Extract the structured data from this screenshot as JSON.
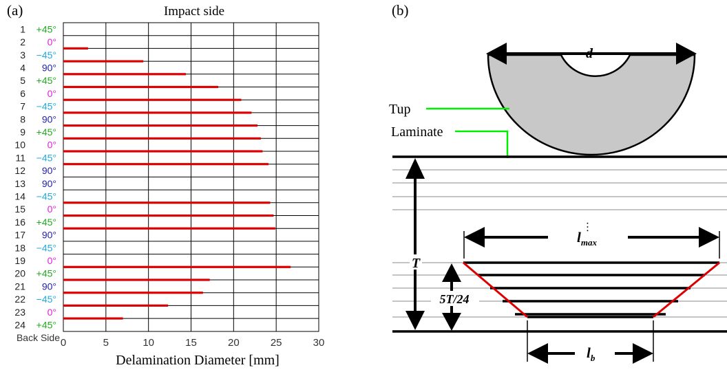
{
  "panel_a": {
    "label": "(a)",
    "chart_data": {
      "type": "bar",
      "orientation": "horizontal",
      "title": "Impact side",
      "xlabel": "Delamination Diameter [mm]",
      "ylabel": "",
      "bottom_label": "Back Side",
      "xlim": [
        0,
        30
      ],
      "xticks": [
        "0",
        "5",
        "10",
        "15",
        "20",
        "25",
        "30"
      ],
      "grid": true,
      "plies": [
        {
          "num": "1",
          "angle": "+45°"
        },
        {
          "num": "2",
          "angle": "0°"
        },
        {
          "num": "3",
          "angle": "−45°"
        },
        {
          "num": "4",
          "angle": "90°"
        },
        {
          "num": "5",
          "angle": "+45°"
        },
        {
          "num": "6",
          "angle": "0°"
        },
        {
          "num": "7",
          "angle": "−45°"
        },
        {
          "num": "8",
          "angle": "90°"
        },
        {
          "num": "9",
          "angle": "+45°"
        },
        {
          "num": "10",
          "angle": "0°"
        },
        {
          "num": "11",
          "angle": "−45°"
        },
        {
          "num": "12",
          "angle": "90°"
        },
        {
          "num": "13",
          "angle": "90°"
        },
        {
          "num": "14",
          "angle": "−45°"
        },
        {
          "num": "15",
          "angle": "0°"
        },
        {
          "num": "16",
          "angle": "+45°"
        },
        {
          "num": "17",
          "angle": "90°"
        },
        {
          "num": "18",
          "angle": "−45°"
        },
        {
          "num": "19",
          "angle": "0°"
        },
        {
          "num": "20",
          "angle": "+45°"
        },
        {
          "num": "21",
          "angle": "90°"
        },
        {
          "num": "22",
          "angle": "−45°"
        },
        {
          "num": "23",
          "angle": "0°"
        },
        {
          "num": "24",
          "angle": "+45°"
        }
      ],
      "interfaces": [
        "1/2",
        "2/3",
        "3/4",
        "4/5",
        "5/6",
        "6/7",
        "7/8",
        "8/9",
        "9/10",
        "10/11",
        "11/12",
        "12/13",
        "13/14",
        "14/15",
        "15/16",
        "16/17",
        "17/18",
        "18/19",
        "19/20",
        "20/21",
        "21/22",
        "22/23",
        "23/24"
      ],
      "values": [
        0,
        2.9,
        9.4,
        14.4,
        18.2,
        20.9,
        22.1,
        22.8,
        23.2,
        23.4,
        24.1,
        0,
        0,
        24.3,
        24.7,
        24.9,
        0,
        0,
        26.7,
        17.2,
        16.4,
        12.3,
        7.0
      ],
      "bar_color": "#dd0000",
      "angle_colors": {
        "+45°": "#22aa22",
        "0°": "#dd22dd",
        "−45°": "#22aadd",
        "90°": "#2222aa"
      }
    }
  },
  "panel_b": {
    "label": "(b)",
    "labels": {
      "d": "d",
      "tup": "Tup",
      "laminate": "Laminate",
      "T": "T",
      "lmax_main": "l",
      "lmax_sub": "max",
      "five_t": "5T/24",
      "lb_main": "l",
      "lb_sub": "b",
      "dots": "···"
    },
    "colors": {
      "tup_fill": "#c8c8c8",
      "leader": "#00ee00",
      "cone": "#dd0000"
    }
  }
}
